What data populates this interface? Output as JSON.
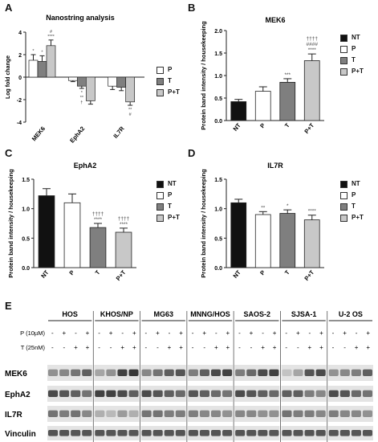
{
  "figure": {
    "panels": {
      "A": {
        "label": "A"
      },
      "B": {
        "label": "B"
      },
      "C": {
        "label": "C"
      },
      "D": {
        "label": "D"
      },
      "E": {
        "label": "E"
      }
    },
    "legend_bcd": [
      "NT",
      "P",
      "T",
      "P+T"
    ],
    "colors": {
      "NT": "#111111",
      "P": "#ffffff",
      "T": "#7f7f7f",
      "P+T": "#c8c8c8"
    },
    "blot": {
      "cell_lines": [
        "HOS",
        "KHOS/NP",
        "MG63",
        "MNNG/HOS",
        "SAOS-2",
        "SJSA-1",
        "U-2 OS"
      ],
      "treatment_rows": [
        {
          "label": "P (10µM)",
          "pattern": [
            "-",
            "+",
            "-",
            "+"
          ]
        },
        {
          "label": "T (25nM)",
          "pattern": [
            "-",
            "-",
            "+",
            "+"
          ]
        }
      ],
      "proteins": [
        "MEK6",
        "EphA2",
        "IL7R",
        "Vinculin"
      ]
    }
  },
  "chart_data": [
    {
      "panel": "A",
      "type": "bar",
      "title": "Nanostring analysis",
      "ylabel": "Log fold change",
      "ylim": [
        -4,
        4
      ],
      "yticks": [
        "-4",
        "-2",
        "0",
        "2",
        "4"
      ],
      "categories": [
        "MEK6",
        "EphA2",
        "IL7R"
      ],
      "series": [
        {
          "name": "P",
          "values": [
            1.5,
            -0.3,
            -0.8
          ],
          "errors": [
            0.5,
            0.1,
            0.3
          ]
        },
        {
          "name": "T",
          "values": [
            1.4,
            -0.8,
            -0.9
          ],
          "errors": [
            0.5,
            0.2,
            0.3
          ]
        },
        {
          "name": "P+T",
          "values": [
            2.8,
            -2.1,
            -2.2
          ],
          "errors": [
            0.5,
            0.3,
            0.3
          ]
        }
      ],
      "annotations": [
        [
          "*",
          "*",
          "#\n****"
        ],
        [
          "",
          "*\n**\n†",
          ""
        ],
        [
          "",
          "",
          "**\n#"
        ]
      ],
      "legend": [
        "P",
        "T",
        "P+T"
      ]
    },
    {
      "panel": "B",
      "type": "bar",
      "title": "MEK6",
      "ylabel": "Protein band intensity / housekeeping",
      "ylim": [
        0,
        2.0
      ],
      "yticks": [
        "0.0",
        "0.5",
        "1.0",
        "1.5",
        "2.0"
      ],
      "categories": [
        "NT",
        "P",
        "T",
        "P+T"
      ],
      "values": [
        0.42,
        0.65,
        0.85,
        1.33
      ],
      "errors": [
        0.05,
        0.1,
        0.08,
        0.15
      ],
      "annotations": [
        "",
        "",
        "***",
        "††††\n####\n****"
      ]
    },
    {
      "panel": "C",
      "type": "bar",
      "title": "EphA2",
      "ylabel": "Protein band intensity / housekeeping",
      "ylim": [
        0,
        1.5
      ],
      "yticks": [
        "0.0",
        "0.5",
        "1.0",
        "1.5"
      ],
      "categories": [
        "NT",
        "P",
        "T",
        "P+T"
      ],
      "values": [
        1.22,
        1.1,
        0.68,
        0.6
      ],
      "errors": [
        0.12,
        0.15,
        0.07,
        0.07
      ],
      "annotations": [
        "",
        "",
        "††††\n****",
        "††††\n****"
      ]
    },
    {
      "panel": "D",
      "type": "bar",
      "title": "IL7R",
      "ylabel": "Protein band intensity / housekeeping",
      "ylim": [
        0,
        1.5
      ],
      "yticks": [
        "0.0",
        "0.5",
        "1.0",
        "1.5"
      ],
      "categories": [
        "NT",
        "P",
        "T",
        "P+T"
      ],
      "values": [
        1.1,
        0.9,
        0.92,
        0.81
      ],
      "errors": [
        0.06,
        0.05,
        0.06,
        0.08
      ],
      "annotations": [
        "",
        "**",
        "*",
        "****"
      ]
    }
  ]
}
